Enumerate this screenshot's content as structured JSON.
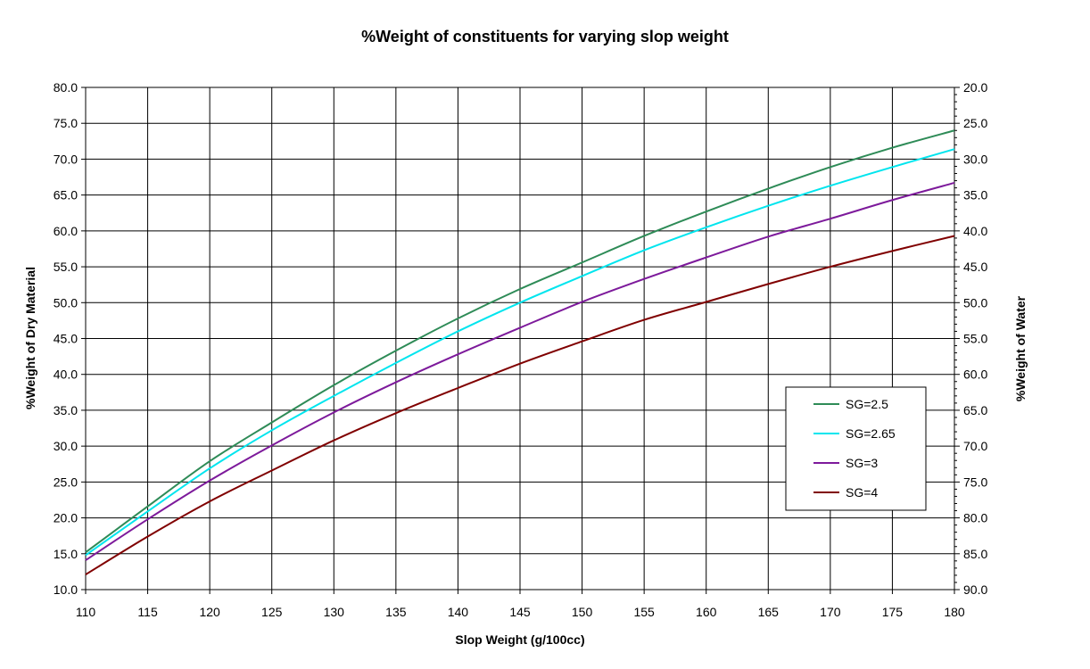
{
  "chart_data": {
    "type": "line",
    "title": "%Weight of constituents for varying slop weight",
    "xlabel": "Slop Weight (g/100cc)",
    "ylabel": "%Weight of Dry Material",
    "y2label": "%Weight of Water",
    "xlim": [
      110,
      180
    ],
    "ylim": [
      10,
      80
    ],
    "y2lim": [
      90,
      20
    ],
    "x_ticks": [
      "110",
      "115",
      "120",
      "125",
      "130",
      "135",
      "140",
      "145",
      "150",
      "155",
      "160",
      "165",
      "170",
      "175",
      "180"
    ],
    "y_ticks": [
      "10.0",
      "15.0",
      "20.0",
      "25.0",
      "30.0",
      "35.0",
      "40.0",
      "45.0",
      "50.0",
      "55.0",
      "60.0",
      "65.0",
      "70.0",
      "75.0",
      "80.0"
    ],
    "y2_ticks": [
      "90.0",
      "85.0",
      "80.0",
      "75.0",
      "70.0",
      "65.0",
      "60.0",
      "55.0",
      "50.0",
      "45.0",
      "40.0",
      "35.0",
      "30.0",
      "25.0",
      "20.0"
    ],
    "grid": true,
    "legend_position": "right",
    "series": [
      {
        "name": "SG=2.5",
        "color": "#2e8b57",
        "x": [
          110,
          115,
          120,
          125,
          130,
          135,
          140,
          145,
          150,
          155,
          160,
          165,
          170,
          175,
          180
        ],
        "values": [
          15.2,
          21.6,
          27.9,
          33.3,
          38.5,
          43.3,
          47.8,
          51.9,
          55.6,
          59.3,
          62.7,
          65.9,
          68.9,
          71.6,
          74.0
        ]
      },
      {
        "name": "SG=2.65",
        "color": "#00e5ee",
        "x": [
          110,
          115,
          120,
          125,
          130,
          135,
          140,
          145,
          150,
          155,
          160,
          165,
          170,
          175,
          180
        ],
        "values": [
          14.8,
          20.9,
          26.9,
          32.2,
          37.0,
          41.6,
          46.0,
          50.0,
          53.7,
          57.3,
          60.5,
          63.5,
          66.3,
          68.9,
          71.4
        ]
      },
      {
        "name": "SG=3",
        "color": "#7d1a9b",
        "x": [
          110,
          115,
          120,
          125,
          130,
          135,
          140,
          145,
          150,
          155,
          160,
          165,
          170,
          175,
          180
        ],
        "values": [
          14.1,
          19.8,
          25.2,
          30.1,
          34.7,
          38.9,
          42.8,
          46.5,
          50.1,
          53.3,
          56.3,
          59.2,
          61.7,
          64.3,
          66.7
        ]
      },
      {
        "name": "SG=4",
        "color": "#800000",
        "x": [
          110,
          115,
          120,
          125,
          130,
          135,
          140,
          145,
          150,
          155,
          160,
          165,
          170,
          175,
          180
        ],
        "values": [
          12.1,
          17.4,
          22.3,
          26.6,
          30.8,
          34.6,
          38.1,
          41.5,
          44.6,
          47.6,
          50.1,
          52.6,
          55.0,
          57.2,
          59.3
        ]
      }
    ]
  }
}
